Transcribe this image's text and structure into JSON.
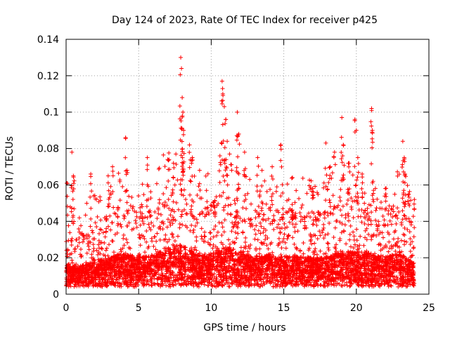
{
  "chart_data": {
    "type": "scatter",
    "title": "Day 124 of 2023, Rate Of TEC Index for receiver p425",
    "xlabel": "GPS time / hours",
    "ylabel": "ROTI / TECUs",
    "xlim": [
      0,
      25
    ],
    "ylim": [
      0,
      0.14
    ],
    "xticks": [
      0,
      5,
      10,
      15,
      20,
      25
    ],
    "xtick_labels": [
      "0",
      "5",
      "10",
      "15",
      "20",
      "25"
    ],
    "yticks": [
      0,
      0.02,
      0.04,
      0.06,
      0.08,
      0.1,
      0.12,
      0.14
    ],
    "ytick_labels": [
      "0",
      "0.02",
      "0.04",
      "0.06",
      "0.08",
      "0.1",
      "0.12",
      "0.14"
    ],
    "grid": true,
    "marker": "+",
    "color": "#ff0000",
    "data_range_hours": [
      0,
      24
    ],
    "series": [
      {
        "name": "ROTI",
        "baseline_min": 0.004,
        "envelope": [
          {
            "x": 0.0,
            "y": 0.035
          },
          {
            "x": 1.0,
            "y": 0.035
          },
          {
            "x": 2.0,
            "y": 0.04
          },
          {
            "x": 3.0,
            "y": 0.045
          },
          {
            "x": 4.0,
            "y": 0.05
          },
          {
            "x": 5.0,
            "y": 0.045
          },
          {
            "x": 6.0,
            "y": 0.048
          },
          {
            "x": 7.0,
            "y": 0.06
          },
          {
            "x": 8.0,
            "y": 0.06
          },
          {
            "x": 9.0,
            "y": 0.048
          },
          {
            "x": 10.0,
            "y": 0.05
          },
          {
            "x": 11.0,
            "y": 0.058
          },
          {
            "x": 12.0,
            "y": 0.052
          },
          {
            "x": 13.0,
            "y": 0.046
          },
          {
            "x": 14.0,
            "y": 0.048
          },
          {
            "x": 15.0,
            "y": 0.046
          },
          {
            "x": 16.0,
            "y": 0.046
          },
          {
            "x": 17.0,
            "y": 0.045
          },
          {
            "x": 18.0,
            "y": 0.046
          },
          {
            "x": 19.0,
            "y": 0.052
          },
          {
            "x": 20.0,
            "y": 0.052
          },
          {
            "x": 21.0,
            "y": 0.05
          },
          {
            "x": 22.0,
            "y": 0.046
          },
          {
            "x": 23.0,
            "y": 0.05
          },
          {
            "x": 24.0,
            "y": 0.038
          }
        ],
        "spikes": [
          {
            "x": 0.05,
            "y": 0.061
          },
          {
            "x": 0.4,
            "y": 0.078
          },
          {
            "x": 0.5,
            "y": 0.065
          },
          {
            "x": 1.7,
            "y": 0.066
          },
          {
            "x": 2.9,
            "y": 0.065
          },
          {
            "x": 3.2,
            "y": 0.07
          },
          {
            "x": 4.1,
            "y": 0.086
          },
          {
            "x": 4.2,
            "y": 0.068
          },
          {
            "x": 5.6,
            "y": 0.075
          },
          {
            "x": 7.0,
            "y": 0.074
          },
          {
            "x": 7.4,
            "y": 0.072
          },
          {
            "x": 7.9,
            "y": 0.13
          },
          {
            "x": 7.95,
            "y": 0.124
          },
          {
            "x": 8.0,
            "y": 0.108
          },
          {
            "x": 8.05,
            "y": 0.1
          },
          {
            "x": 8.1,
            "y": 0.09
          },
          {
            "x": 8.5,
            "y": 0.082
          },
          {
            "x": 8.7,
            "y": 0.075
          },
          {
            "x": 9.2,
            "y": 0.068
          },
          {
            "x": 10.6,
            "y": 0.076
          },
          {
            "x": 10.75,
            "y": 0.117
          },
          {
            "x": 10.8,
            "y": 0.11
          },
          {
            "x": 10.9,
            "y": 0.103
          },
          {
            "x": 11.0,
            "y": 0.096
          },
          {
            "x": 11.1,
            "y": 0.084
          },
          {
            "x": 11.8,
            "y": 0.1
          },
          {
            "x": 11.9,
            "y": 0.088
          },
          {
            "x": 12.3,
            "y": 0.078
          },
          {
            "x": 13.2,
            "y": 0.075
          },
          {
            "x": 13.5,
            "y": 0.068
          },
          {
            "x": 14.2,
            "y": 0.07
          },
          {
            "x": 14.8,
            "y": 0.082
          },
          {
            "x": 15.6,
            "y": 0.064
          },
          {
            "x": 17.0,
            "y": 0.058
          },
          {
            "x": 17.9,
            "y": 0.083
          },
          {
            "x": 18.2,
            "y": 0.07
          },
          {
            "x": 18.5,
            "y": 0.078
          },
          {
            "x": 19.0,
            "y": 0.097
          },
          {
            "x": 19.1,
            "y": 0.082
          },
          {
            "x": 19.5,
            "y": 0.072
          },
          {
            "x": 19.9,
            "y": 0.096
          },
          {
            "x": 20.0,
            "y": 0.09
          },
          {
            "x": 20.1,
            "y": 0.075
          },
          {
            "x": 20.4,
            "y": 0.066
          },
          {
            "x": 21.05,
            "y": 0.102
          },
          {
            "x": 21.1,
            "y": 0.09
          },
          {
            "x": 21.15,
            "y": 0.062
          },
          {
            "x": 22.0,
            "y": 0.058
          },
          {
            "x": 23.2,
            "y": 0.084
          },
          {
            "x": 23.3,
            "y": 0.075
          },
          {
            "x": 23.35,
            "y": 0.066
          },
          {
            "x": 23.6,
            "y": 0.055
          },
          {
            "x": 24.0,
            "y": 0.052
          }
        ]
      }
    ]
  }
}
